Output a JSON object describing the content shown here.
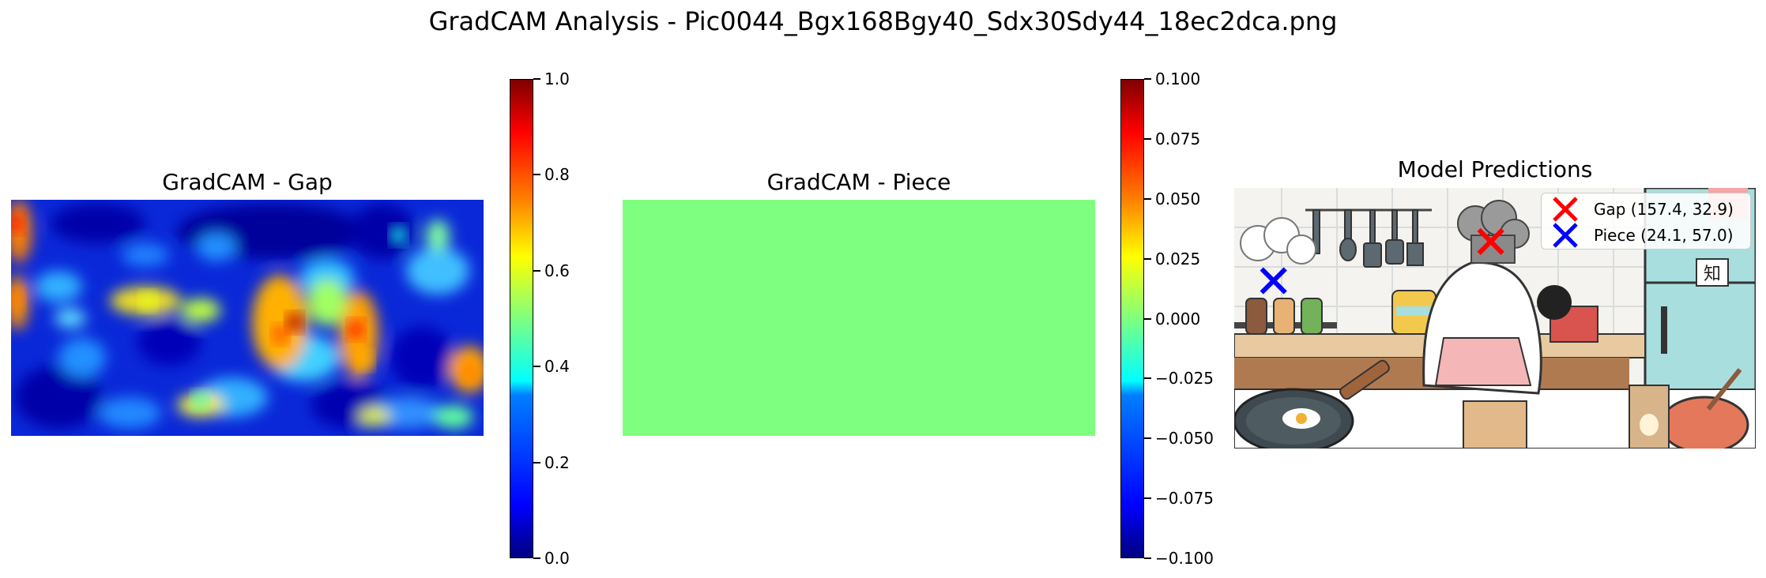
{
  "suptitle": "GradCAM Analysis - Pic0044_Bgx168Bgy40_Sdx30Sdy44_18ec2dca.png",
  "chart_data": [
    {
      "type": "heatmap",
      "title": "GradCAM - Gap",
      "colormap": "jet",
      "colorbar": {
        "range": [
          0.0,
          1.0
        ],
        "ticks": [
          "0.0",
          "0.2",
          "0.4",
          "0.6",
          "0.8",
          "1.0"
        ]
      },
      "hotspots": [
        {
          "x": 0.01,
          "y": 0.1,
          "value": 0.85
        },
        {
          "x": 0.01,
          "y": 0.42,
          "value": 0.75
        },
        {
          "x": 0.6,
          "y": 0.52,
          "value": 0.95
        },
        {
          "x": 0.57,
          "y": 0.57,
          "value": 0.8
        },
        {
          "x": 0.73,
          "y": 0.55,
          "value": 0.85
        },
        {
          "x": 0.75,
          "y": 0.68,
          "value": 0.7
        },
        {
          "x": 0.29,
          "y": 0.43,
          "value": 0.6
        },
        {
          "x": 0.97,
          "y": 0.73,
          "value": 0.75
        },
        {
          "x": 0.4,
          "y": 0.85,
          "value": 0.45
        },
        {
          "x": 0.82,
          "y": 0.15,
          "value": 0.4
        }
      ]
    },
    {
      "type": "heatmap",
      "title": "GradCAM - Piece",
      "colormap": "jet",
      "uniform_value": 0.0,
      "fill_color": "#7fff7f",
      "colorbar": {
        "range": [
          -0.1,
          0.1
        ],
        "ticks": [
          "−0.100",
          "−0.075",
          "−0.050",
          "−0.025",
          "0.000",
          "0.025",
          "0.050",
          "0.075",
          "0.100"
        ]
      }
    },
    {
      "type": "scatter",
      "title": "Model Predictions",
      "image_extent": {
        "x": [
          0,
          320
        ],
        "y": [
          0,
          160
        ]
      },
      "series": [
        {
          "name": "Gap (157.4, 32.9)",
          "marker": "x",
          "color": "#ff0000",
          "x": [
            157.4
          ],
          "y": [
            32.9
          ]
        },
        {
          "name": "Piece (24.1, 57.0)",
          "marker": "x",
          "color": "#0000ff",
          "x": [
            24.1
          ],
          "y": [
            57.0
          ]
        }
      ],
      "legend_position": "top-right"
    }
  ]
}
